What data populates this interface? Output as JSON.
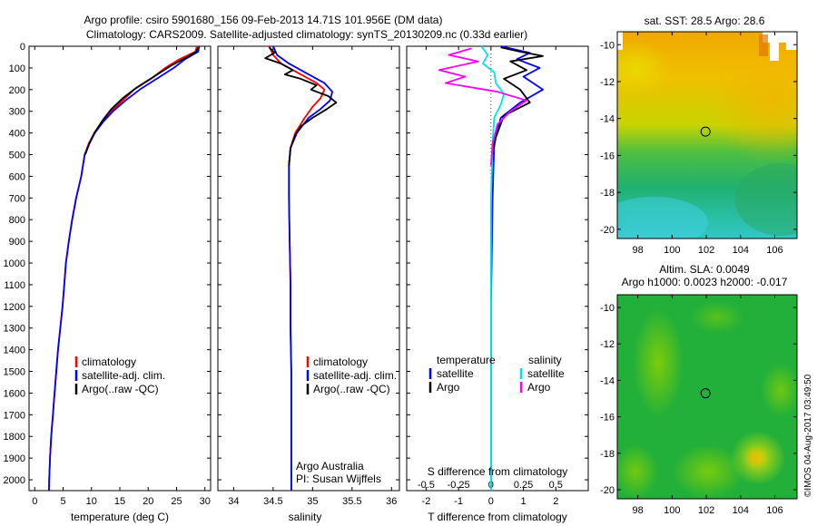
{
  "header": {
    "title_line1": "Argo profile: csiro 5901680_156 09-Feb-2013 14.71S 101.956E (DM data)",
    "title_line2": "Climatology: CARS2009. Satellite-adjusted climatology: synTS_20130209.nc (0.33d earlier)"
  },
  "side_label": "©IMOS 04-Aug-2017 03:49:50",
  "colors": {
    "climatology": "#ff0000",
    "satellite": "#0000ff",
    "argo": "#000000",
    "cyan": "#00e5e5",
    "magenta": "#ff00ff"
  },
  "chart_data": [
    {
      "type": "line",
      "id": "temperature",
      "xlabel": "temperature (deg C)",
      "ylabel": "",
      "xlim": [
        -1,
        31
      ],
      "ylim": [
        2050,
        0
      ],
      "xticks": [
        0,
        5,
        10,
        15,
        20,
        25,
        30
      ],
      "yticks": [
        0,
        100,
        200,
        300,
        400,
        500,
        600,
        700,
        800,
        900,
        1000,
        1100,
        1200,
        1300,
        1400,
        1500,
        1600,
        1700,
        1800,
        1900,
        2000
      ],
      "legend": [
        "climatology",
        "satellite-adj. clim.",
        "Argo(..raw -QC)"
      ],
      "series": [
        {
          "name": "climatology",
          "color": "#ff0000",
          "points": [
            [
              28.6,
              0
            ],
            [
              28.3,
              25
            ],
            [
              25.5,
              60
            ],
            [
              23,
              100
            ],
            [
              20.5,
              150
            ],
            [
              17.5,
              200
            ],
            [
              15.5,
              250
            ],
            [
              13.5,
              300
            ],
            [
              12,
              350
            ],
            [
              10.5,
              400
            ],
            [
              9.5,
              450
            ],
            [
              8.8,
              500
            ],
            [
              8.2,
              600
            ],
            [
              7.3,
              700
            ],
            [
              6.6,
              800
            ],
            [
              6,
              900
            ],
            [
              5.5,
              1000
            ],
            [
              5.2,
              1100
            ],
            [
              4.9,
              1200
            ],
            [
              4.5,
              1300
            ],
            [
              4.1,
              1400
            ],
            [
              3.8,
              1500
            ],
            [
              3.5,
              1600
            ],
            [
              3.2,
              1700
            ],
            [
              2.9,
              1800
            ],
            [
              2.7,
              1900
            ],
            [
              2.55,
              2000
            ],
            [
              2.5,
              2050
            ]
          ]
        },
        {
          "name": "satellite-adj. clim.",
          "color": "#0000ff",
          "points": [
            [
              29,
              0
            ],
            [
              28.8,
              25
            ],
            [
              26.5,
              60
            ],
            [
              24.5,
              100
            ],
            [
              21.5,
              150
            ],
            [
              18.5,
              200
            ],
            [
              16,
              250
            ],
            [
              13.8,
              300
            ],
            [
              12,
              350
            ],
            [
              10.6,
              400
            ],
            [
              9.6,
              450
            ],
            [
              8.8,
              500
            ],
            [
              8.2,
              600
            ],
            [
              7.3,
              700
            ],
            [
              6.6,
              800
            ],
            [
              6,
              900
            ],
            [
              5.5,
              1000
            ],
            [
              5.2,
              1100
            ],
            [
              4.9,
              1200
            ],
            [
              4.5,
              1300
            ],
            [
              4.1,
              1400
            ],
            [
              3.8,
              1500
            ],
            [
              3.5,
              1600
            ],
            [
              3.2,
              1700
            ],
            [
              2.9,
              1800
            ],
            [
              2.7,
              1900
            ],
            [
              2.55,
              2000
            ],
            [
              2.5,
              2050
            ]
          ]
        },
        {
          "name": "Argo(..raw -QC)",
          "color": "#000000",
          "points": [
            [
              28.8,
              5
            ],
            [
              28.5,
              25
            ],
            [
              26.5,
              55
            ],
            [
              24,
              90
            ],
            [
              21,
              140
            ],
            [
              18,
              190
            ],
            [
              15.5,
              240
            ],
            [
              13.5,
              290
            ],
            [
              12,
              340
            ],
            [
              10.5,
              400
            ],
            [
              9.6,
              450
            ],
            [
              8.9,
              500
            ]
          ]
        }
      ]
    },
    {
      "type": "line",
      "id": "salinity",
      "xlabel": "salinity",
      "xlim": [
        33.8,
        36.1
      ],
      "ylim": [
        2050,
        0
      ],
      "xticks": [
        34,
        34.5,
        35,
        35.5,
        36
      ],
      "legend": [
        "climatology",
        "satellite-adj. clim.",
        "Argo(..raw -QC)"
      ],
      "annotation": [
        "Argo Australia",
        "PI: Susan Wijffels"
      ],
      "series": [
        {
          "name": "climatology",
          "color": "#ff0000",
          "points": [
            [
              34.45,
              0
            ],
            [
              34.5,
              40
            ],
            [
              34.6,
              80
            ],
            [
              34.85,
              130
            ],
            [
              35.05,
              170
            ],
            [
              35.15,
              200
            ],
            [
              35.1,
              240
            ],
            [
              35.0,
              280
            ],
            [
              34.9,
              330
            ],
            [
              34.78,
              400
            ],
            [
              34.72,
              470
            ],
            [
              34.7,
              550
            ],
            [
              34.7,
              700
            ],
            [
              34.71,
              900
            ],
            [
              34.72,
              1100
            ],
            [
              34.72,
              1300
            ],
            [
              34.73,
              1500
            ],
            [
              34.73,
              1700
            ],
            [
              34.73,
              1900
            ],
            [
              34.73,
              2050
            ]
          ]
        },
        {
          "name": "satellite-adj. clim.",
          "color": "#0000ff",
          "points": [
            [
              34.5,
              0
            ],
            [
              34.55,
              40
            ],
            [
              34.7,
              80
            ],
            [
              34.95,
              130
            ],
            [
              35.15,
              170
            ],
            [
              35.25,
              210
            ],
            [
              35.22,
              250
            ],
            [
              35.1,
              290
            ],
            [
              34.95,
              330
            ],
            [
              34.8,
              400
            ],
            [
              34.72,
              470
            ],
            [
              34.7,
              550
            ],
            [
              34.7,
              700
            ],
            [
              34.71,
              900
            ],
            [
              34.72,
              1100
            ],
            [
              34.72,
              1300
            ],
            [
              34.73,
              1500
            ],
            [
              34.73,
              1700
            ],
            [
              34.73,
              1900
            ],
            [
              34.73,
              2050
            ]
          ]
        },
        {
          "name": "Argo(..raw -QC)",
          "color": "#000000",
          "points": [
            [
              34.45,
              5
            ],
            [
              34.52,
              30
            ],
            [
              34.4,
              55
            ],
            [
              34.6,
              80
            ],
            [
              34.75,
              110
            ],
            [
              34.65,
              130
            ],
            [
              34.85,
              150
            ],
            [
              35.05,
              180
            ],
            [
              34.98,
              200
            ],
            [
              35.2,
              230
            ],
            [
              35.3,
              260
            ],
            [
              35.18,
              290
            ],
            [
              35.0,
              330
            ],
            [
              34.85,
              370
            ],
            [
              34.78,
              410
            ],
            [
              34.72,
              470
            ],
            [
              34.7,
              550
            ]
          ]
        }
      ]
    },
    {
      "type": "line",
      "id": "difference",
      "xlabel": "T difference from climatology",
      "xlabel_top": "S difference from climatology",
      "xlim": [
        -2.6,
        3.0
      ],
      "ylim": [
        2050,
        0
      ],
      "xticks": [
        -2,
        -1,
        0,
        1,
        2
      ],
      "s_ticks": [
        "-0.5",
        "-0.25",
        "0",
        "0.25",
        "0.5"
      ],
      "legend_temperature": {
        "title": "temperature",
        "items": [
          "satellite",
          "Argo"
        ]
      },
      "legend_salinity": {
        "title": "salinity",
        "items": [
          "satellite",
          "Argo"
        ]
      },
      "series": [
        {
          "name": "satellite",
          "quantity": "temperature",
          "color": "#0000ff",
          "points": [
            [
              0.3,
              0
            ],
            [
              1.2,
              30
            ],
            [
              0.8,
              60
            ],
            [
              1.5,
              100
            ],
            [
              1.0,
              140
            ],
            [
              1.6,
              200
            ],
            [
              0.9,
              260
            ],
            [
              0.3,
              330
            ],
            [
              0.1,
              450
            ],
            [
              0.05,
              700
            ],
            [
              0,
              1200
            ],
            [
              0,
              2050
            ]
          ]
        },
        {
          "name": "Argo",
          "quantity": "temperature",
          "color": "#000000",
          "points": [
            [
              0.3,
              5
            ],
            [
              0.9,
              25
            ],
            [
              1.6,
              45
            ],
            [
              0.6,
              70
            ],
            [
              1.1,
              110
            ],
            [
              0.4,
              150
            ],
            [
              0.9,
              200
            ],
            [
              1.2,
              260
            ],
            [
              0.4,
              320
            ],
            [
              0.15,
              420
            ],
            [
              0.05,
              500
            ]
          ]
        },
        {
          "name": "satellite",
          "quantity": "salinity",
          "color": "#00e5e5",
          "points": [
            [
              -0.3,
              0
            ],
            [
              -0.1,
              40
            ],
            [
              -0.25,
              80
            ],
            [
              0.1,
              120
            ],
            [
              0.15,
              170
            ],
            [
              0.4,
              220
            ],
            [
              0.3,
              270
            ],
            [
              0.1,
              330
            ],
            [
              0.05,
              450
            ],
            [
              0.0,
              700
            ],
            [
              0,
              1200
            ],
            [
              0,
              2050
            ]
          ]
        },
        {
          "name": "Argo",
          "quantity": "salinity",
          "color": "#ff00ff",
          "points": [
            [
              -0.6,
              10
            ],
            [
              -1.3,
              40
            ],
            [
              -0.4,
              70
            ],
            [
              -1.6,
              110
            ],
            [
              -0.8,
              140
            ],
            [
              -1.4,
              170
            ],
            [
              0.2,
              210
            ],
            [
              1.1,
              250
            ],
            [
              0.6,
              300
            ],
            [
              0.2,
              360
            ],
            [
              0.05,
              450
            ],
            [
              0,
              550
            ]
          ]
        }
      ]
    },
    {
      "type": "heatmap",
      "id": "sst_map",
      "title": "sat. SST: 28.5 Argo: 28.6",
      "xlim": [
        96.8,
        107.3
      ],
      "ylim": [
        -20.5,
        -9.3
      ],
      "xticks": [
        98,
        100,
        102,
        104,
        106
      ],
      "yticks": [
        -10,
        -12,
        -14,
        -16,
        -18,
        -20
      ],
      "marker": {
        "lon": 101.956,
        "lat": -14.71
      }
    },
    {
      "type": "heatmap",
      "id": "sla_map",
      "title_line1": "Altim. SLA: 0.0049",
      "title_line2": "Argo h1000: 0.0023 h2000: -0.017",
      "xlim": [
        96.8,
        107.3
      ],
      "ylim": [
        -20.5,
        -9.3
      ],
      "xticks": [
        98,
        100,
        102,
        104,
        106
      ],
      "yticks": [
        -10,
        -12,
        -14,
        -16,
        -18,
        -20
      ],
      "marker": {
        "lon": 101.956,
        "lat": -14.71
      }
    }
  ]
}
